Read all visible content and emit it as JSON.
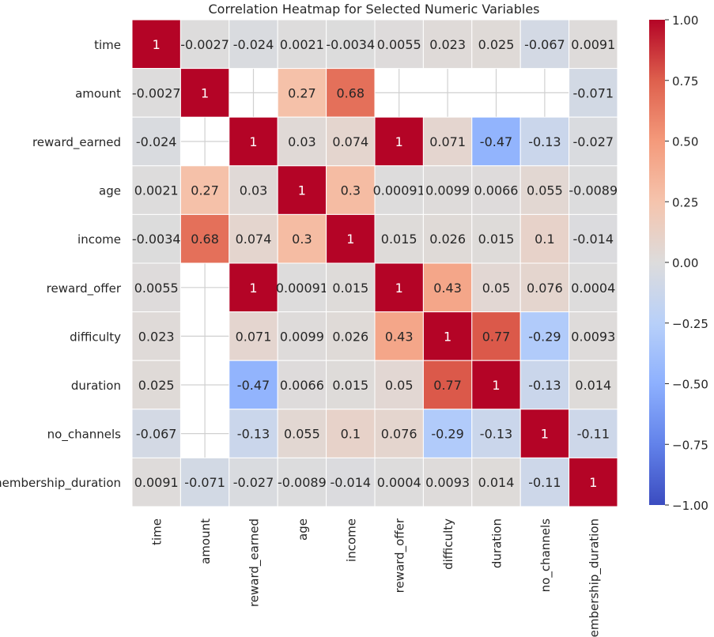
{
  "chart_data": {
    "type": "heatmap",
    "title": "Correlation Heatmap for Selected Numeric Variables",
    "variables": [
      "time",
      "amount",
      "reward_earned",
      "age",
      "income",
      "reward_offer",
      "difficulty",
      "duration",
      "no_channels",
      "membership_duration"
    ],
    "matrix": [
      [
        1,
        -0.0027,
        -0.024,
        0.0021,
        -0.0034,
        0.0055,
        0.023,
        0.025,
        -0.067,
        0.0091
      ],
      [
        -0.0027,
        1,
        null,
        0.27,
        0.68,
        null,
        null,
        null,
        null,
        -0.071
      ],
      [
        -0.024,
        null,
        1,
        0.03,
        0.074,
        1,
        0.071,
        -0.47,
        -0.13,
        -0.027
      ],
      [
        0.0021,
        0.27,
        0.03,
        1,
        0.3,
        0.00091,
        0.0099,
        0.0066,
        0.055,
        -0.0089
      ],
      [
        -0.0034,
        0.68,
        0.074,
        0.3,
        1,
        0.015,
        0.026,
        0.015,
        0.1,
        -0.014
      ],
      [
        0.0055,
        null,
        1,
        0.00091,
        0.015,
        1,
        0.43,
        0.05,
        0.076,
        0.0004
      ],
      [
        0.023,
        null,
        0.071,
        0.0099,
        0.026,
        0.43,
        1,
        0.77,
        -0.29,
        0.0093
      ],
      [
        0.025,
        null,
        -0.47,
        0.0066,
        0.015,
        0.05,
        0.77,
        1,
        -0.13,
        0.014
      ],
      [
        -0.067,
        null,
        -0.13,
        0.055,
        0.1,
        0.076,
        -0.29,
        -0.13,
        1,
        -0.11
      ],
      [
        0.0091,
        -0.071,
        -0.027,
        -0.0089,
        -0.014,
        0.0004,
        0.0093,
        0.014,
        -0.11,
        1
      ]
    ],
    "labels": [
      [
        "1",
        "-0.0027",
        "-0.024",
        "0.0021",
        "-0.0034",
        "0.0055",
        "0.023",
        "0.025",
        "-0.067",
        "0.0091"
      ],
      [
        "-0.0027",
        "1",
        "",
        "0.27",
        "0.68",
        "",
        "",
        "",
        "",
        "-0.071"
      ],
      [
        "-0.024",
        "",
        "1",
        "0.03",
        "0.074",
        "1",
        "0.071",
        "-0.47",
        "-0.13",
        "-0.027"
      ],
      [
        "0.0021",
        "0.27",
        "0.03",
        "1",
        "0.3",
        "0.00091",
        "0.0099",
        "0.0066",
        "0.055",
        "-0.0089"
      ],
      [
        "-0.0034",
        "0.68",
        "0.074",
        "0.3",
        "1",
        "0.015",
        "0.026",
        "0.015",
        "0.1",
        "-0.014"
      ],
      [
        "0.0055",
        "",
        "1",
        "0.00091",
        "0.015",
        "1",
        "0.43",
        "0.05",
        "0.076",
        "0.0004"
      ],
      [
        "0.023",
        "",
        "0.071",
        "0.0099",
        "0.026",
        "0.43",
        "1",
        "0.77",
        "-0.29",
        "0.0093"
      ],
      [
        "0.025",
        "",
        "-0.47",
        "0.0066",
        "0.015",
        "0.05",
        "0.77",
        "1",
        "-0.13",
        "0.014"
      ],
      [
        "-0.067",
        "",
        "-0.13",
        "0.055",
        "0.1",
        "0.076",
        "-0.29",
        "-0.13",
        "1",
        "-0.11"
      ],
      [
        "0.0091",
        "-0.071",
        "-0.027",
        "-0.0089",
        "-0.014",
        "0.0004",
        "0.0093",
        "0.014",
        "-0.11",
        "1"
      ]
    ],
    "colorbar": {
      "vmin": -1,
      "vmax": 1,
      "ticks": [
        1,
        0.75,
        0.5,
        0.25,
        0,
        -0.25,
        -0.5,
        -0.75,
        -1
      ],
      "tick_labels": [
        "1.00",
        "0.75",
        "0.50",
        "0.25",
        "0.00",
        "−0.25",
        "−0.50",
        "−0.75",
        "−1.00"
      ],
      "colormap": "coolwarm"
    },
    "colors": {
      "blue_end": "#3b4cc0",
      "center": "#dddcdc",
      "red_end": "#b40426",
      "grid_line": "#d0d0d0"
    }
  }
}
